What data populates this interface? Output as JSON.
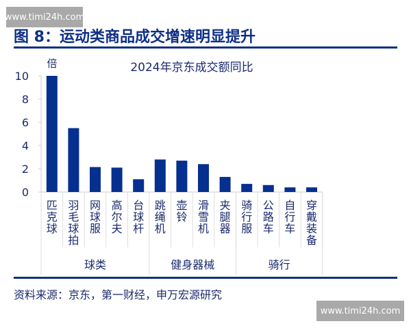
{
  "watermark": "www.timi24h.com",
  "figure_title": "图 8：运动类商品成交增速明显提升",
  "source": "资料来源：京东，第一财经，申万宏源研究",
  "chart_data": {
    "type": "bar",
    "title": "2024年京东成交额同比",
    "ylabel": "倍",
    "ylim": [
      0,
      10
    ],
    "yticks": [
      0,
      2,
      4,
      6,
      8,
      10
    ],
    "grid": false,
    "color": "#06308f",
    "categories": [
      "匹克球",
      "羽毛球拍",
      "网球服",
      "高尔夫",
      "台球杆",
      "跳绳机",
      "壶铃",
      "滑雪机",
      "夹腿器",
      "骑行服",
      "公路车",
      "自行车",
      "穿戴装备"
    ],
    "values": [
      10.0,
      5.5,
      2.15,
      2.1,
      1.1,
      2.8,
      2.7,
      2.4,
      1.3,
      0.7,
      0.6,
      0.4,
      0.4
    ],
    "groups": [
      {
        "name": "球类",
        "count": 5
      },
      {
        "name": "健身器械",
        "count": 4
      },
      {
        "name": "骑行",
        "count": 4
      }
    ]
  }
}
